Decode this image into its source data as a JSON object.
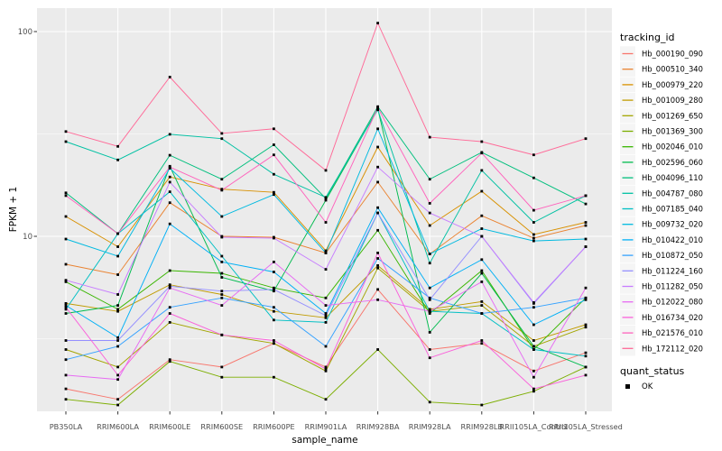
{
  "chart_data": {
    "type": "line",
    "title": "",
    "xlabel": "sample_name",
    "ylabel": "FPKM + 1",
    "y_scale": "log10",
    "y_ticks": [
      10,
      100
    ],
    "y_minor_gridlines": [
      3.1623,
      31.623
    ],
    "ylim": [
      1.4,
      130
    ],
    "grid": "on",
    "legend_position": "right",
    "marker": "black-square",
    "categories": [
      "PB350LA",
      "RRIM600LA",
      "RRIM600LE",
      "RRIM600SE",
      "RRIM600PE",
      "RRIM901LA",
      "RRIM928BA",
      "RRIM928LA",
      "RRIM928LB",
      "RRII105LA_Control",
      "RRII105LA_Stressed"
    ],
    "series": [
      {
        "name": "Hb_000190_090",
        "color": "#F8766D",
        "values": [
          1.8,
          1.6,
          2.5,
          2.3,
          3.0,
          2.3,
          5.5,
          2.8,
          3.0,
          2.2,
          2.7
        ]
      },
      {
        "name": "Hb_000510_340",
        "color": "#EA8331",
        "values": [
          7.3,
          6.5,
          14.6,
          10.0,
          9.9,
          8.3,
          18.4,
          8.2,
          12.6,
          9.8,
          11.3
        ]
      },
      {
        "name": "Hb_000979_220",
        "color": "#D89000",
        "values": [
          12.5,
          8.9,
          19.5,
          17.0,
          16.4,
          8.5,
          27.3,
          11.3,
          16.6,
          10.2,
          11.7
        ]
      },
      {
        "name": "Hb_001009_280",
        "color": "#C09B00",
        "values": [
          4.7,
          4.3,
          5.8,
          5.2,
          4.3,
          4.0,
          7.2,
          4.4,
          4.8,
          3.1,
          3.7
        ]
      },
      {
        "name": "Hb_001269_650",
        "color": "#A3A500",
        "values": [
          2.8,
          2.3,
          3.8,
          3.3,
          3.0,
          2.2,
          7.0,
          4.3,
          4.6,
          2.9,
          3.6
        ]
      },
      {
        "name": "Hb_001369_300",
        "color": "#7CAE00",
        "values": [
          1.6,
          1.5,
          2.45,
          2.05,
          2.05,
          1.6,
          2.8,
          1.55,
          1.5,
          1.75,
          2.3
        ]
      },
      {
        "name": "Hb_002046_010",
        "color": "#39B600",
        "values": [
          6.0,
          4.4,
          6.8,
          6.6,
          5.6,
          5.0,
          10.7,
          4.2,
          6.8,
          2.8,
          5.0
        ]
      },
      {
        "name": "Hb_002596_060",
        "color": "#00BB4E",
        "values": [
          4.2,
          4.6,
          22.0,
          6.3,
          5.4,
          15.0,
          42.0,
          3.4,
          6.6,
          2.9,
          2.3
        ]
      },
      {
        "name": "Hb_004096_110",
        "color": "#00BF7D",
        "values": [
          16.3,
          10.3,
          24.9,
          19.0,
          28.0,
          15.3,
          43.0,
          19.0,
          25.7,
          19.3,
          14.4
        ]
      },
      {
        "name": "Hb_004787_080",
        "color": "#00C1A3",
        "values": [
          29.0,
          23.6,
          31.5,
          30.0,
          20.1,
          15.5,
          41.5,
          7.4,
          21.0,
          11.7,
          15.8
        ]
      },
      {
        "name": "Hb_007185_040",
        "color": "#00BFC4",
        "values": [
          4.4,
          10.3,
          16.5,
          8.0,
          3.9,
          3.8,
          13.0,
          4.3,
          4.2,
          2.8,
          2.6
        ]
      },
      {
        "name": "Hb_009732_020",
        "color": "#00BAE0",
        "values": [
          9.7,
          8.0,
          21.5,
          12.5,
          16.0,
          8.3,
          33.5,
          8.2,
          10.9,
          9.5,
          9.7
        ]
      },
      {
        "name": "Hb_010422_010",
        "color": "#00B0F6",
        "values": [
          4.6,
          3.2,
          11.5,
          7.5,
          6.7,
          4.2,
          13.8,
          5.6,
          7.7,
          3.7,
          4.9
        ]
      },
      {
        "name": "Hb_010872_050",
        "color": "#35A2FF",
        "values": [
          2.5,
          2.9,
          4.5,
          5.0,
          4.5,
          2.9,
          7.8,
          5.0,
          4.2,
          4.5,
          5.0
        ]
      },
      {
        "name": "Hb_011224_160",
        "color": "#9590FF",
        "values": [
          3.1,
          3.1,
          5.7,
          5.4,
          5.5,
          4.1,
          13.0,
          4.9,
          10.0,
          4.7,
          8.9
        ]
      },
      {
        "name": "Hb_011282_050",
        "color": "#C77CFF",
        "values": [
          6.1,
          5.2,
          18.4,
          9.9,
          9.8,
          6.9,
          21.8,
          13.0,
          10.0,
          4.75,
          8.9
        ]
      },
      {
        "name": "Hb_012022_080",
        "color": "#E76BF3",
        "values": [
          2.1,
          2.0,
          5.6,
          4.6,
          7.5,
          4.6,
          4.9,
          4.3,
          6.0,
          2.05,
          5.6
        ]
      },
      {
        "name": "Hb_016734_020",
        "color": "#FA62DB",
        "values": [
          4.5,
          2.1,
          4.2,
          3.3,
          3.1,
          2.25,
          8.3,
          2.55,
          3.1,
          1.8,
          2.1
        ]
      },
      {
        "name": "Hb_021576_010",
        "color": "#FF62BC",
        "values": [
          15.8,
          10.3,
          21.8,
          16.8,
          25.0,
          11.7,
          42.5,
          14.5,
          25.5,
          13.4,
          15.8
        ]
      },
      {
        "name": "Hb_172112_020",
        "color": "#FF6A98",
        "values": [
          32.5,
          27.5,
          60.0,
          31.8,
          33.5,
          21.0,
          110.0,
          30.5,
          29.0,
          25.0,
          30.0
        ]
      }
    ],
    "legend": {
      "color_title": "tracking_id",
      "shape_title": "quant_status",
      "shape_entries": [
        {
          "label": "OK"
        }
      ]
    }
  },
  "style": {
    "panel_bg": "#EBEBEB",
    "grid_color": "#FFFFFF",
    "tick_label_color": "#4D4D4D",
    "tick_mark_color": "#333333",
    "legend_key_bg": "#F5F5F5",
    "marker_color": "#000000"
  }
}
